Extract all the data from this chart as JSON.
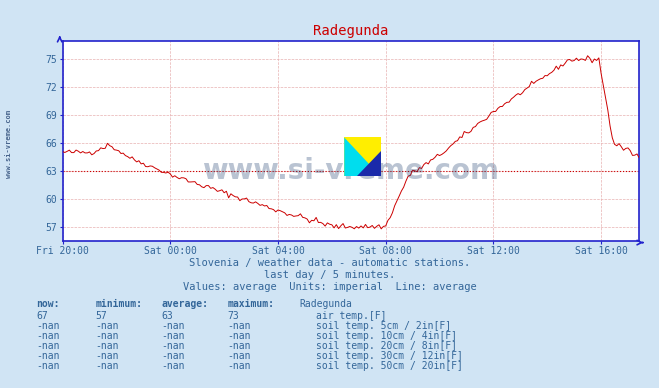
{
  "title": "Radegunda",
  "title_color": "#cc0000",
  "bg_color": "#d0e4f4",
  "plot_bg_color": "#ffffff",
  "grid_color": "#e8b0b0",
  "line_color": "#cc0000",
  "axis_color": "#2222cc",
  "tick_color": "#336699",
  "text_color": "#336699",
  "watermark": "www.si-vreme.com",
  "watermark_color": "#1a3a6a",
  "sidebar_text": "www.si-vreme.com",
  "subtitle1": "Slovenia / weather data - automatic stations.",
  "subtitle2": "last day / 5 minutes.",
  "subtitle3": "Values: average  Units: imperial  Line: average",
  "x_labels": [
    "Fri 20:00",
    "Sat 00:00",
    "Sat 04:00",
    "Sat 08:00",
    "Sat 12:00",
    "Sat 16:00"
  ],
  "x_tick_pos": [
    0,
    48,
    96,
    144,
    192,
    240
  ],
  "y_ticks": [
    57,
    60,
    63,
    66,
    69,
    72,
    75
  ],
  "ylim": [
    55.5,
    77
  ],
  "xlim_max": 257,
  "avg_val": 63,
  "now_val": "67",
  "min_val": "57",
  "avg_val_str": "63",
  "max_val": "73",
  "n_points": 258,
  "legend_items": [
    {
      "label": "air temp.[F]",
      "color": "#cc0000"
    },
    {
      "label": "soil temp. 5cm / 2in[F]",
      "color": "#c8a0a0"
    },
    {
      "label": "soil temp. 10cm / 4in[F]",
      "color": "#b07830"
    },
    {
      "label": "soil temp. 20cm / 8in[F]",
      "color": "#908010"
    },
    {
      "label": "soil temp. 30cm / 12in[F]",
      "color": "#607050"
    },
    {
      "label": "soil temp. 50cm / 20in[F]",
      "color": "#703010"
    }
  ],
  "legend_rows": [
    {
      "now": "-nan",
      "min": "-nan",
      "avg": "-nan",
      "max": "-nan"
    },
    {
      "now": "-nan",
      "min": "-nan",
      "avg": "-nan",
      "max": "-nan"
    },
    {
      "now": "-nan",
      "min": "-nan",
      "avg": "-nan",
      "max": "-nan"
    },
    {
      "now": "-nan",
      "min": "-nan",
      "avg": "-nan",
      "max": "-nan"
    },
    {
      "now": "-nan",
      "min": "-nan",
      "avg": "-nan",
      "max": "-nan"
    }
  ]
}
